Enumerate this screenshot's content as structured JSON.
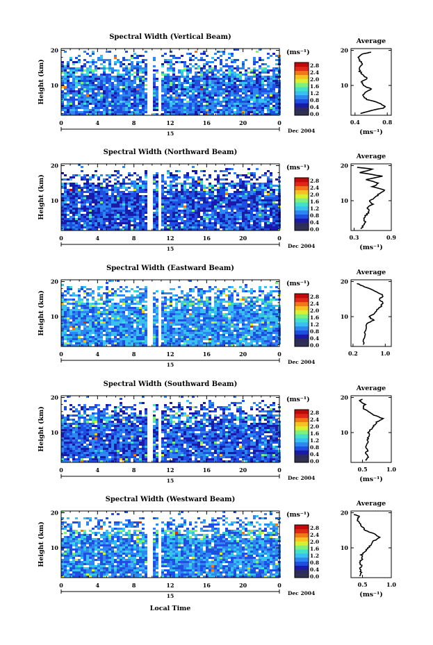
{
  "figure": {
    "xlabel": "Local Time",
    "date_label": "Dec 2004",
    "day_label": "15"
  },
  "chart_data": [
    {
      "type": "heatmap",
      "title": "Spectral Width (Vertical Beam)",
      "ylabel": "Height (km)",
      "xlim": [
        0,
        24
      ],
      "ylim": [
        1.5,
        20.5
      ],
      "x_ticks": [
        "0",
        "4",
        "8",
        "12",
        "16",
        "20",
        "0"
      ],
      "y_ticks": [
        "20",
        "10"
      ],
      "colorbar": {
        "unit": "(ms⁻¹)",
        "ticks": [
          "2.8",
          "2.4",
          "2.0",
          "1.6",
          "1.2",
          "0.8",
          "0.4",
          "0.0"
        ]
      },
      "profile": {
        "title": "Average",
        "xlabel": "(ms⁻¹)",
        "xlim": [
          0.35,
          0.85
        ],
        "x_ticks": [
          "0.4",
          "0.8"
        ],
        "y_ticks": [
          "20",
          "10"
        ],
        "points": [
          [
            0.46,
            2
          ],
          [
            0.62,
            3
          ],
          [
            0.75,
            3.5
          ],
          [
            0.78,
            4
          ],
          [
            0.7,
            5
          ],
          [
            0.55,
            6
          ],
          [
            0.5,
            7
          ],
          [
            0.52,
            8
          ],
          [
            0.6,
            9
          ],
          [
            0.5,
            10
          ],
          [
            0.48,
            11
          ],
          [
            0.55,
            12
          ],
          [
            0.5,
            13
          ],
          [
            0.46,
            14
          ],
          [
            0.45,
            15
          ],
          [
            0.5,
            16
          ],
          [
            0.46,
            17
          ],
          [
            0.44,
            18
          ],
          [
            0.5,
            19
          ],
          [
            0.6,
            19.5
          ]
        ]
      }
    },
    {
      "type": "heatmap",
      "title": "Spectral Width (Northward Beam)",
      "ylabel": "Height (km)",
      "xlim": [
        0,
        24
      ],
      "ylim": [
        1.5,
        20.5
      ],
      "x_ticks": [
        "0",
        "4",
        "8",
        "12",
        "16",
        "20",
        "0"
      ],
      "y_ticks": [
        "20",
        "10"
      ],
      "colorbar": {
        "unit": "(ms⁻¹)",
        "ticks": [
          "2.8",
          "2.4",
          "2.0",
          "1.6",
          "1.2",
          "0.8",
          "0.4",
          "0.0"
        ]
      },
      "profile": {
        "title": "Average",
        "xlabel": "(ms⁻¹)",
        "xlim": [
          0.25,
          0.9
        ],
        "x_ticks": [
          "0.3",
          "0.9"
        ],
        "y_ticks": [
          "20",
          "10"
        ],
        "points": [
          [
            0.42,
            2
          ],
          [
            0.45,
            3
          ],
          [
            0.48,
            4
          ],
          [
            0.45,
            5
          ],
          [
            0.5,
            6
          ],
          [
            0.55,
            7
          ],
          [
            0.5,
            8
          ],
          [
            0.6,
            9
          ],
          [
            0.55,
            10
          ],
          [
            0.65,
            11
          ],
          [
            0.7,
            12
          ],
          [
            0.8,
            13
          ],
          [
            0.6,
            14
          ],
          [
            0.7,
            15
          ],
          [
            0.5,
            16
          ],
          [
            0.75,
            17
          ],
          [
            0.4,
            18
          ],
          [
            0.6,
            19
          ],
          [
            0.35,
            19.5
          ]
        ]
      }
    },
    {
      "type": "heatmap",
      "title": "Spectral Width (Eastward Beam)",
      "ylabel": "Height (km)",
      "xlim": [
        0,
        24
      ],
      "ylim": [
        1.5,
        20.5
      ],
      "x_ticks": [
        "0",
        "4",
        "8",
        "12",
        "16",
        "20",
        "0"
      ],
      "y_ticks": [
        "20",
        "10"
      ],
      "colorbar": {
        "unit": "(ms⁻¹)",
        "ticks": [
          "2.8",
          "2.4",
          "2.0",
          "1.6",
          "1.2",
          "0.8",
          "0.4",
          "0.0"
        ]
      },
      "profile": {
        "title": "Average",
        "xlabel": "",
        "xlim": [
          0.15,
          1.15
        ],
        "x_ticks": [
          "0.2",
          "1.0"
        ],
        "y_ticks": [
          "20",
          "10"
        ],
        "points": [
          [
            0.45,
            2
          ],
          [
            0.48,
            4
          ],
          [
            0.5,
            6
          ],
          [
            0.55,
            8
          ],
          [
            0.7,
            9
          ],
          [
            0.6,
            10
          ],
          [
            0.75,
            11
          ],
          [
            0.8,
            12
          ],
          [
            0.9,
            13
          ],
          [
            0.95,
            14
          ],
          [
            0.85,
            15
          ],
          [
            0.95,
            16
          ],
          [
            0.8,
            17
          ],
          [
            0.6,
            18
          ],
          [
            0.4,
            19
          ],
          [
            0.3,
            19.5
          ]
        ]
      }
    },
    {
      "type": "heatmap",
      "title": "Spectral Width (Southward Beam)",
      "ylabel": "Height (km)",
      "xlim": [
        0,
        24
      ],
      "ylim": [
        1.5,
        20.5
      ],
      "x_ticks": [
        "0",
        "4",
        "8",
        "12",
        "16",
        "20",
        "0"
      ],
      "y_ticks": [
        "20",
        "10"
      ],
      "colorbar": {
        "unit": "(ms⁻¹)",
        "ticks": [
          "2.8",
          "2.4",
          "2.0",
          "1.6",
          "1.2",
          "0.8",
          "0.4",
          "0.0"
        ]
      },
      "profile": {
        "title": "Average",
        "xlabel": "(ms⁻¹)",
        "xlim": [
          0.3,
          1.0
        ],
        "x_ticks": [
          "0.5",
          "1.0"
        ],
        "y_ticks": [
          "20",
          "10"
        ],
        "points": [
          [
            0.55,
            2
          ],
          [
            0.6,
            3
          ],
          [
            0.55,
            4
          ],
          [
            0.6,
            5
          ],
          [
            0.55,
            6
          ],
          [
            0.6,
            7
          ],
          [
            0.58,
            8
          ],
          [
            0.62,
            9
          ],
          [
            0.6,
            10
          ],
          [
            0.65,
            11
          ],
          [
            0.7,
            12
          ],
          [
            0.75,
            13
          ],
          [
            0.85,
            14
          ],
          [
            0.7,
            15
          ],
          [
            0.6,
            16
          ],
          [
            0.5,
            17
          ],
          [
            0.55,
            18
          ],
          [
            0.45,
            19
          ],
          [
            0.5,
            19.5
          ]
        ]
      }
    },
    {
      "type": "heatmap",
      "title": "Spectral Width (Westward Beam)",
      "ylabel": "Height (km)",
      "xlim": [
        0,
        24
      ],
      "ylim": [
        1.5,
        20.5
      ],
      "x_ticks": [
        "0",
        "4",
        "8",
        "12",
        "16",
        "20",
        "0"
      ],
      "y_ticks": [
        "20",
        "10"
      ],
      "colorbar": {
        "unit": "(ms⁻¹)",
        "ticks": [
          "2.8",
          "2.4",
          "2.0",
          "1.6",
          "1.2",
          "0.8",
          "0.4",
          "0.0"
        ]
      },
      "profile": {
        "title": "Average",
        "xlabel": "(ms⁻¹)",
        "xlim": [
          0.3,
          1.0
        ],
        "x_ticks": [
          "0.5",
          "1.0"
        ],
        "y_ticks": [
          "20",
          "10"
        ],
        "points": [
          [
            0.45,
            2
          ],
          [
            0.48,
            3
          ],
          [
            0.45,
            4
          ],
          [
            0.48,
            5
          ],
          [
            0.45,
            6
          ],
          [
            0.5,
            7
          ],
          [
            0.48,
            8
          ],
          [
            0.55,
            9
          ],
          [
            0.6,
            10
          ],
          [
            0.65,
            11
          ],
          [
            0.7,
            12
          ],
          [
            0.8,
            13
          ],
          [
            0.7,
            14
          ],
          [
            0.55,
            15
          ],
          [
            0.5,
            16
          ],
          [
            0.45,
            17
          ],
          [
            0.4,
            18
          ],
          [
            0.45,
            19
          ],
          [
            0.35,
            19.5
          ]
        ]
      }
    }
  ],
  "colorscale": [
    "#2b2b5f",
    "#1a1aa8",
    "#1f4fe0",
    "#2e86f0",
    "#37c0f0",
    "#43e2c8",
    "#7ff07a",
    "#d8f030",
    "#f8c020",
    "#f07818",
    "#e02818",
    "#c00a0a"
  ]
}
